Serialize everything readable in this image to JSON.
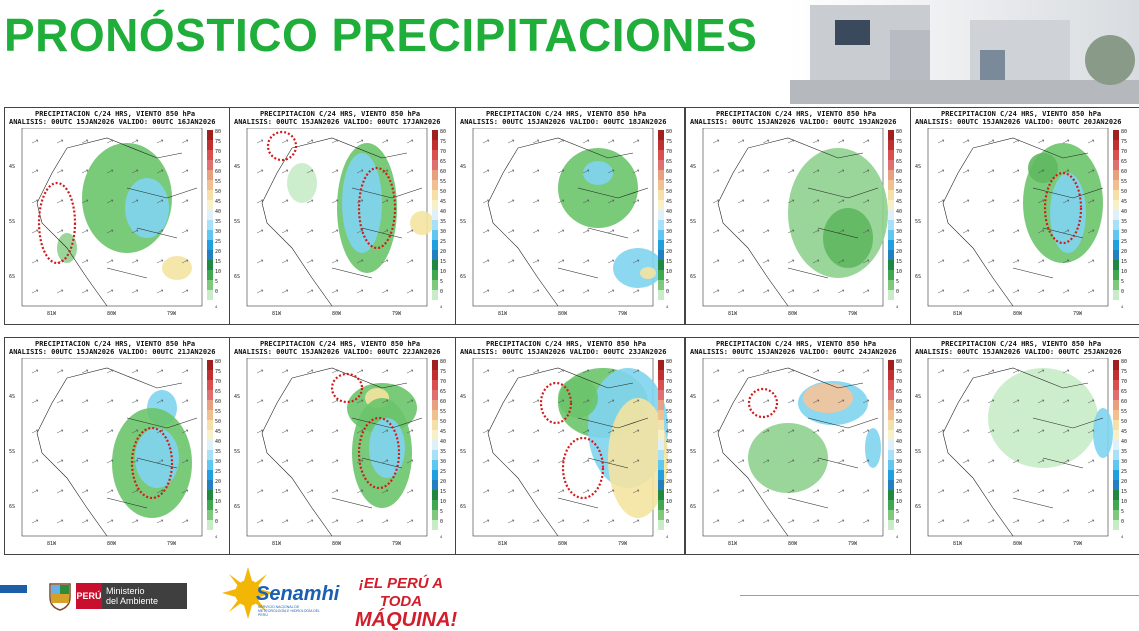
{
  "header": {
    "title": "PRONÓSTICO PRECIPITACIONES"
  },
  "panel_header": "PRECIPITACION C/24 HRS, VIENTO 850 hPa",
  "panels": [
    {
      "subtitle": "ANALISIS: 00UTC 15JAN2026 VALIDO: 00UTC 16JAN2026"
    },
    {
      "subtitle": "ANALISIS: 00UTC 15JAN2026 VALIDO: 00UTC 17JAN2026"
    },
    {
      "subtitle": "ANALISIS: 00UTC 15JAN2026 VALIDO: 00UTC 18JAN2026"
    },
    {
      "subtitle": "ANALISIS: 00UTC 15JAN2026 VALIDO: 00UTC 19JAN2026"
    },
    {
      "subtitle": "ANALISIS: 00UTC 15JAN2026 VALIDO: 00UTC 20JAN2026"
    },
    {
      "subtitle": "ANALISIS: 00UTC 15JAN2026 VALIDO: 00UTC 21JAN2026"
    },
    {
      "subtitle": "ANALISIS: 00UTC 15JAN2026 VALIDO: 00UTC 22JAN2026"
    },
    {
      "subtitle": "ANALISIS: 00UTC 15JAN2026 VALIDO: 00UTC 23JAN2026"
    },
    {
      "subtitle": "ANALISIS: 00UTC 15JAN2026 VALIDO: 00UTC 24JAN2026"
    },
    {
      "subtitle": "ANALISIS: 00UTC 15JAN2026 VALIDO: 00UTC 25JAN2026"
    }
  ],
  "x_ticks": [
    "81W",
    "80W",
    "79W"
  ],
  "y_ticks": [
    "4S",
    "5S",
    "6S"
  ],
  "colorbar_ticks": [
    "80",
    "75",
    "70",
    "65",
    "60",
    "55",
    "50",
    "45",
    "40",
    "35",
    "30",
    "25",
    "20",
    "15",
    "10",
    "5",
    "0"
  ],
  "colorbar_unit": "4",
  "footer": {
    "ministry_badge": "PERÚ",
    "ministry_name_1": "Ministerio",
    "ministry_name_2": "del Ambiente",
    "senamhi": "Senamhi",
    "senamhi_sub": "SERVICIO NACIONAL DE METEOROLOGÍA E HIDROLOGÍA DEL PERÚ",
    "slogan_1": "¡EL PERÚ A TODA",
    "slogan_2": "MÁQUINA!"
  }
}
